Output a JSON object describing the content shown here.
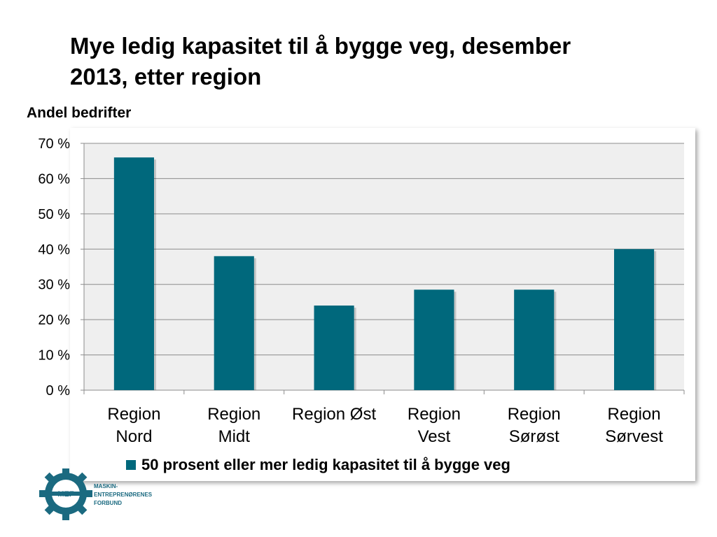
{
  "slide": {
    "title_line1": "Mye ledig kapasitet til å bygge veg, desember",
    "title_line2": "2013, etter region",
    "y_caption": "Andel bedrifter"
  },
  "chart_data": {
    "type": "bar",
    "title": "Mye ledig kapasitet til å bygge veg, desember 2013, etter region",
    "ylabel": "Andel bedrifter",
    "categories": [
      [
        "Region",
        "Nord"
      ],
      [
        "Region",
        "Midt"
      ],
      [
        "Region Øst"
      ],
      [
        "Region",
        "Vest"
      ],
      [
        "Region",
        "Sørøst"
      ],
      [
        "Region",
        "Sørvest"
      ]
    ],
    "series": [
      {
        "name": "50 prosent eller mer ledig kapasitet til å bygge veg",
        "values": [
          66,
          38,
          24,
          28.5,
          28.5,
          40
        ],
        "color": "#00687c"
      }
    ],
    "ylim": [
      0,
      70
    ],
    "yticks": [
      0,
      10,
      20,
      30,
      40,
      50,
      60,
      70
    ],
    "ytick_labels": [
      "0 %",
      "10 %",
      "20 %",
      "30 %",
      "40 %",
      "50 %",
      "60 %",
      "70 %"
    ],
    "grid": true,
    "legend_position": "bottom"
  },
  "logo": {
    "mark_text": "MEF",
    "name_lines": [
      "MASKIN-",
      "ENTREPRENØRENES",
      "FORBUND"
    ]
  }
}
